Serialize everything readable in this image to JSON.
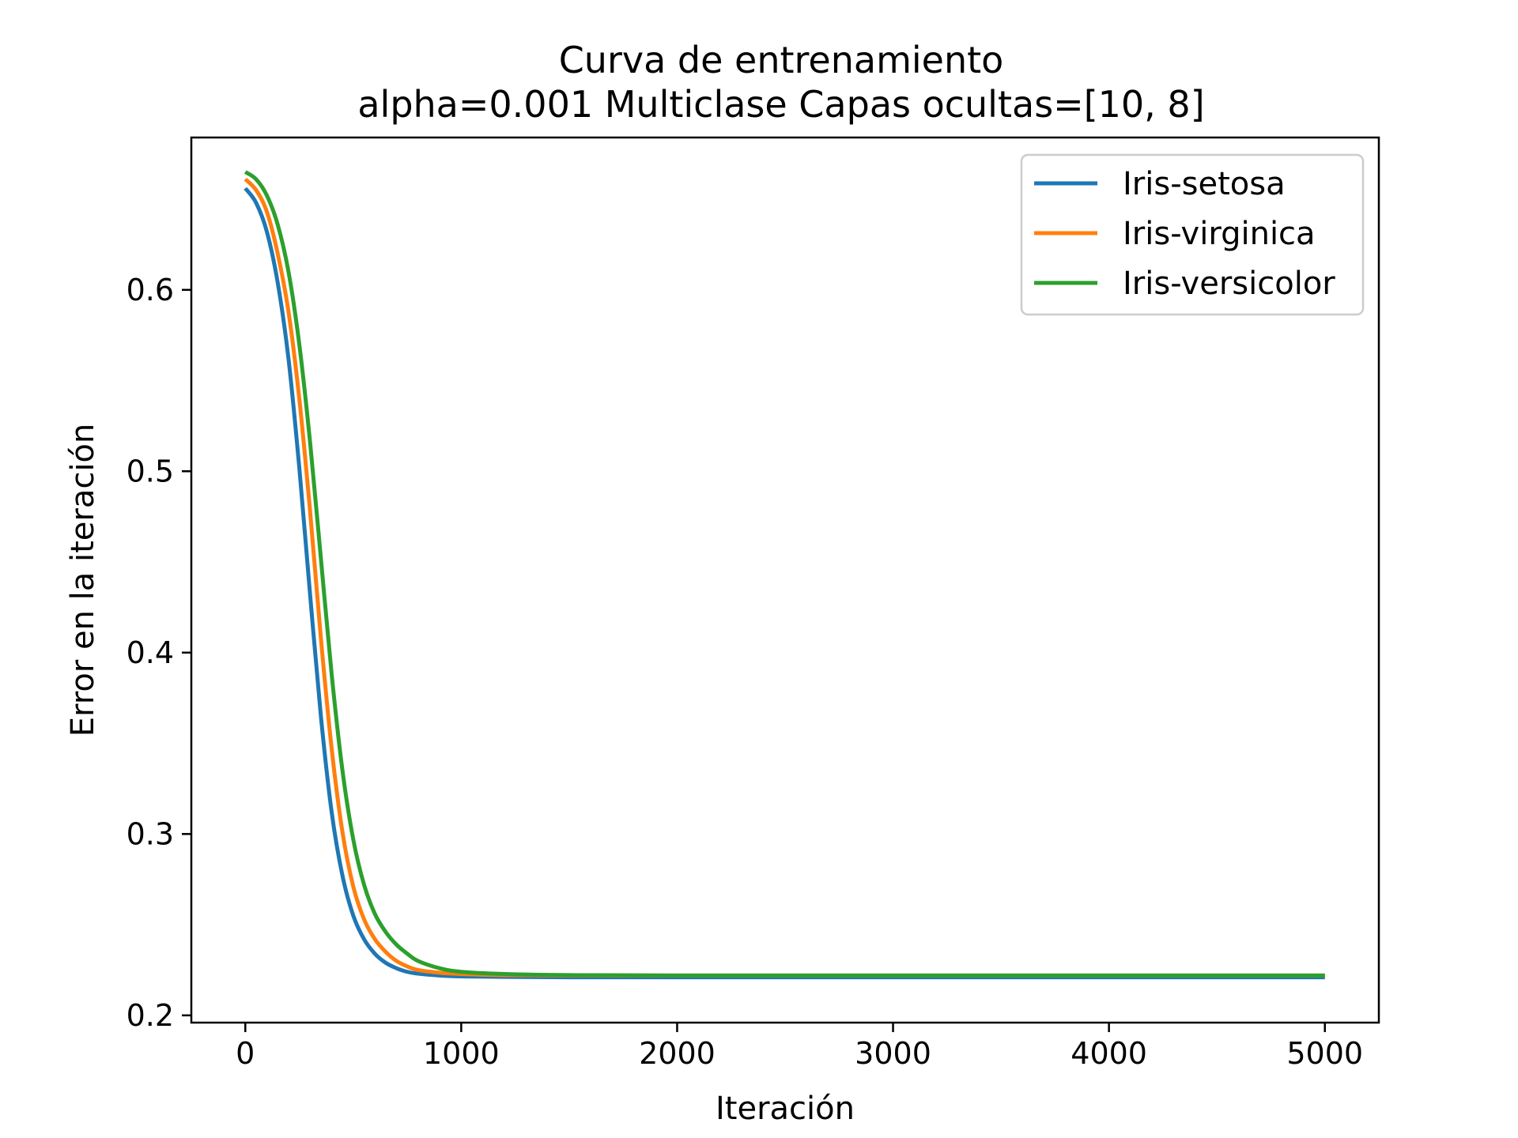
{
  "chart_data": {
    "type": "line",
    "title": "Curva de entrenamiento",
    "subtitle": "alpha=0.001 Multiclase Capas ocultas=[10, 8]",
    "xlabel": "Iteración",
    "ylabel": "Error en la iteración",
    "xlim": [
      -250,
      5250
    ],
    "ylim": [
      0.196,
      0.684
    ],
    "xticks": [
      0,
      1000,
      2000,
      3000,
      4000,
      5000
    ],
    "xtick_labels": [
      "0",
      "1000",
      "2000",
      "3000",
      "4000",
      "5000"
    ],
    "yticks": [
      0.2,
      0.3,
      0.4,
      0.5,
      0.6
    ],
    "ytick_labels": [
      "0.2",
      "0.3",
      "0.4",
      "0.5",
      "0.6"
    ],
    "grid": false,
    "legend_position": "top-right",
    "x": [
      0,
      50,
      100,
      150,
      200,
      250,
      300,
      350,
      400,
      450,
      500,
      550,
      600,
      650,
      700,
      750,
      800,
      900,
      1000,
      1200,
      1500,
      2000,
      3000,
      4000,
      5000
    ],
    "series": [
      {
        "name": "Iris-setosa",
        "color": "#1f77b4",
        "values": [
          0.656,
          0.648,
          0.632,
          0.604,
          0.562,
          0.502,
          0.432,
          0.365,
          0.312,
          0.277,
          0.255,
          0.242,
          0.234,
          0.229,
          0.226,
          0.224,
          0.223,
          0.222,
          0.2215,
          0.2212,
          0.221,
          0.221,
          0.221,
          0.221,
          0.221
        ]
      },
      {
        "name": "Iris-virginica",
        "color": "#ff7f0e",
        "values": [
          0.661,
          0.655,
          0.643,
          0.62,
          0.588,
          0.54,
          0.478,
          0.408,
          0.347,
          0.301,
          0.271,
          0.253,
          0.242,
          0.235,
          0.23,
          0.227,
          0.225,
          0.2235,
          0.2228,
          0.2222,
          0.222,
          0.222,
          0.222,
          0.222,
          0.222
        ]
      },
      {
        "name": "Iris-versicolor",
        "color": "#2ca02c",
        "values": [
          0.665,
          0.661,
          0.652,
          0.636,
          0.61,
          0.57,
          0.516,
          0.452,
          0.388,
          0.335,
          0.297,
          0.272,
          0.256,
          0.246,
          0.239,
          0.234,
          0.23,
          0.226,
          0.224,
          0.2228,
          0.2222,
          0.222,
          0.222,
          0.222,
          0.222
        ]
      }
    ]
  }
}
